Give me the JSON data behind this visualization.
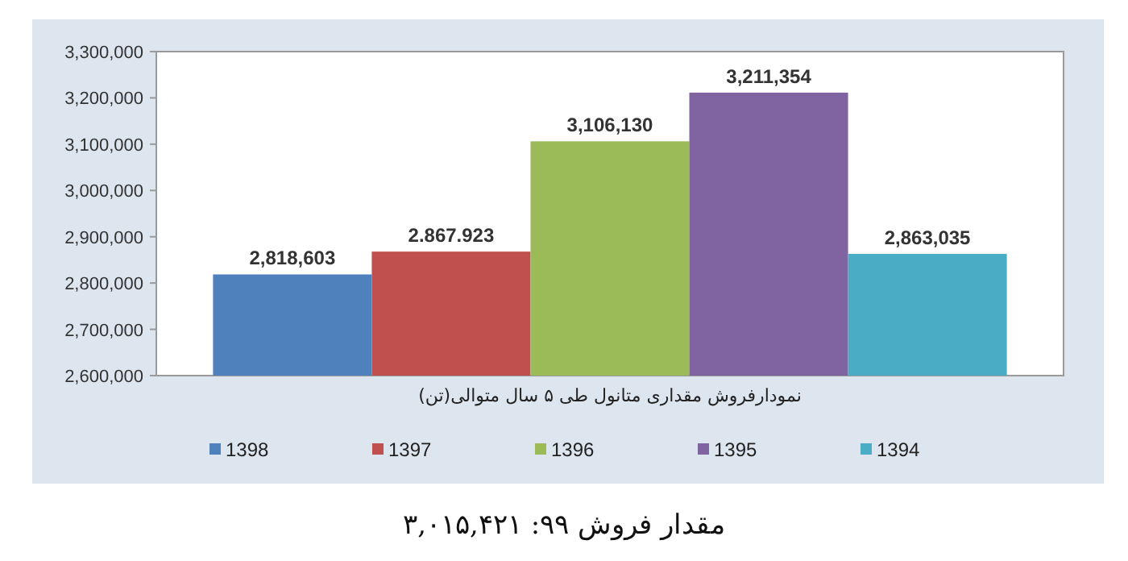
{
  "chart_data": {
    "type": "bar",
    "categories": [
      null
    ],
    "xlabel": "نمودارفروش مقداری متانول طی ۵ سال متوالی(تن)",
    "series": [
      {
        "name": "1398",
        "color": "#4f81bd",
        "values": [
          2818603
        ],
        "value_labels": [
          "2,818,603"
        ]
      },
      {
        "name": "1397",
        "color": "#c0504d",
        "values": [
          2867923
        ],
        "value_labels": [
          "2.867.923"
        ]
      },
      {
        "name": "1396",
        "color": "#9bbb59",
        "values": [
          3106130
        ],
        "value_labels": [
          "3,106,130"
        ]
      },
      {
        "name": "1395",
        "color": "#8064a2",
        "values": [
          3211354
        ],
        "value_labels": [
          "3,211,354"
        ]
      },
      {
        "name": "1394",
        "color": "#4bacc6",
        "values": [
          2863035
        ],
        "value_labels": [
          "2,863,035"
        ]
      }
    ],
    "ylim": [
      2600000,
      3300000
    ],
    "yticks": [
      {
        "value": 2600000,
        "label": "2,600,000"
      },
      {
        "value": 2700000,
        "label": "2,700,000"
      },
      {
        "value": 2800000,
        "label": "2,800,000"
      },
      {
        "value": 2900000,
        "label": "2,900,000"
      },
      {
        "value": 3000000,
        "label": "3,000,000"
      },
      {
        "value": 3100000,
        "label": "3,100,000"
      },
      {
        "value": 3200000,
        "label": "3,200,000"
      },
      {
        "value": 3300000,
        "label": "3,300,000"
      }
    ],
    "legend": "bottom",
    "annotations": [
      "مقدار فروش ۹۹: ۳,۰۱۵,۴۲۱"
    ]
  }
}
